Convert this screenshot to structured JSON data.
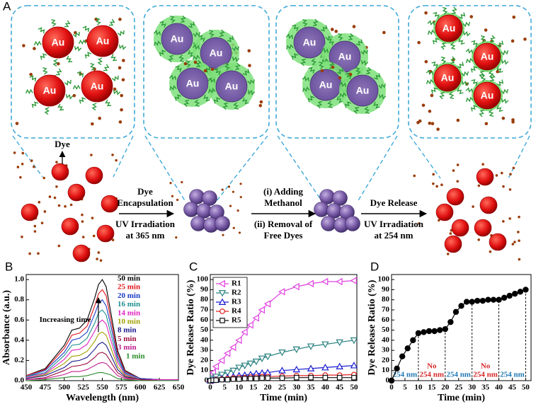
{
  "panel_labels": [
    "A",
    "B",
    "C",
    "D"
  ],
  "diagram": {
    "particle_label": "Au",
    "dye_label": "Dye",
    "steps": [
      {
        "above": [
          "Dye",
          "Encapsulation"
        ],
        "below": [
          "UV Irradiation",
          "at 365 nm"
        ]
      },
      {
        "above": [
          "(i) Adding",
          "Methanol"
        ],
        "below": [
          "(ii) Removal of",
          "Free Dyes"
        ]
      },
      {
        "above": [
          "Dye Release"
        ],
        "below": [
          "UV Irradiation",
          "at 254 nm"
        ]
      }
    ]
  },
  "chart_data": [
    {
      "type": "line",
      "xlabel": "Wavelength (nm)",
      "ylabel": "Absorbance (a.u.)",
      "annotation": "Increasing time",
      "x": [
        450,
        475,
        500,
        510,
        520,
        530,
        540,
        545,
        550,
        555,
        560,
        570,
        580,
        600,
        625,
        650
      ],
      "xlim": [
        450,
        650
      ],
      "xticks": [
        450,
        475,
        500,
        525,
        550,
        575,
        600,
        625,
        650
      ],
      "ylim": [
        0,
        1.05
      ],
      "yticks": [
        {
          "value": 0,
          "label": "0.0"
        },
        0.2,
        0.4,
        0.6,
        0.8,
        {
          "value": 1,
          "label": "1.0"
        }
      ],
      "series": [
        {
          "name": "50 min",
          "color": "#000000",
          "values": [
            0.05,
            0.12,
            0.35,
            0.5,
            0.52,
            0.6,
            0.82,
            0.95,
            1.0,
            0.93,
            0.72,
            0.3,
            0.1,
            0.02,
            0.01,
            0.01
          ]
        },
        {
          "name": "25 min",
          "color": "#e0151b",
          "values": [
            0.05,
            0.11,
            0.32,
            0.45,
            0.47,
            0.54,
            0.74,
            0.86,
            0.9,
            0.84,
            0.65,
            0.27,
            0.09,
            0.02,
            0.01,
            0.01
          ]
        },
        {
          "name": "20 min",
          "color": "#1a3cc8",
          "values": [
            0.04,
            0.1,
            0.28,
            0.4,
            0.42,
            0.48,
            0.66,
            0.76,
            0.8,
            0.74,
            0.58,
            0.24,
            0.08,
            0.02,
            0.01,
            0.01
          ]
        },
        {
          "name": "16 min",
          "color": "#1f8f8f",
          "values": [
            0.04,
            0.08,
            0.25,
            0.35,
            0.36,
            0.42,
            0.57,
            0.67,
            0.7,
            0.65,
            0.5,
            0.21,
            0.07,
            0.01,
            0.01,
            0.01
          ]
        },
        {
          "name": "14 min",
          "color": "#e020c0",
          "values": [
            0.03,
            0.07,
            0.21,
            0.3,
            0.31,
            0.36,
            0.49,
            0.57,
            0.6,
            0.56,
            0.43,
            0.18,
            0.06,
            0.01,
            0.01,
            0.01
          ]
        },
        {
          "name": "10 min",
          "color": "#a0a000",
          "values": [
            0.02,
            0.06,
            0.17,
            0.24,
            0.25,
            0.29,
            0.39,
            0.46,
            0.48,
            0.45,
            0.35,
            0.14,
            0.05,
            0.01,
            0,
            0
          ]
        },
        {
          "name": "8 min",
          "color": "#1a1a8c",
          "values": [
            0.02,
            0.05,
            0.13,
            0.19,
            0.2,
            0.23,
            0.31,
            0.36,
            0.38,
            0.35,
            0.27,
            0.11,
            0.04,
            0.01,
            0,
            0
          ]
        },
        {
          "name": "5 min",
          "color": "#a01040",
          "values": [
            0.01,
            0.03,
            0.1,
            0.14,
            0.15,
            0.17,
            0.23,
            0.27,
            0.28,
            0.26,
            0.2,
            0.08,
            0.03,
            0.01,
            0,
            0
          ]
        },
        {
          "name": "3 min",
          "color": "#c0208f",
          "values": [
            0.01,
            0.02,
            0.06,
            0.09,
            0.09,
            0.11,
            0.15,
            0.17,
            0.18,
            0.17,
            0.13,
            0.05,
            0.02,
            0,
            0,
            0
          ]
        },
        {
          "name": "1 min",
          "color": "#2a8a2a",
          "values": [
            0,
            0.01,
            0.03,
            0.04,
            0.04,
            0.05,
            0.07,
            0.08,
            0.08,
            0.07,
            0.06,
            0.02,
            0.01,
            0,
            0,
            0
          ]
        }
      ]
    },
    {
      "type": "line",
      "xlabel": "Time (min)",
      "ylabel": "Dye Release Ratio (%)",
      "x": [
        0,
        1,
        2,
        4,
        6,
        8,
        10,
        12,
        14,
        16,
        18,
        20,
        25,
        30,
        35,
        40,
        45,
        50
      ],
      "xlim": [
        0,
        51
      ],
      "xticks": [
        0,
        5,
        10,
        15,
        20,
        25,
        30,
        35,
        40,
        45,
        50
      ],
      "ylim": [
        0,
        105
      ],
      "yticks": [
        0,
        10,
        20,
        30,
        40,
        50,
        60,
        70,
        80,
        90,
        100
      ],
      "legend": "upper left",
      "series": [
        {
          "name": "R1",
          "color": "#e040e0",
          "marker": "triangle-left",
          "values": [
            0,
            8,
            14,
            20,
            27,
            33,
            40,
            48,
            55,
            62,
            70,
            76,
            88,
            93,
            96,
            98,
            98,
            99
          ]
        },
        {
          "name": "R2",
          "color": "#2a8080",
          "marker": "triangle-down",
          "values": [
            0,
            2,
            4,
            6,
            8,
            10,
            13,
            15,
            17,
            19,
            22,
            24,
            28,
            31,
            34,
            36,
            38,
            40
          ]
        },
        {
          "name": "R3",
          "color": "#1a1ad0",
          "marker": "triangle-up",
          "values": [
            0,
            0.5,
            1,
            2,
            3,
            4,
            5,
            5.5,
            6,
            7,
            7.5,
            8,
            10,
            11,
            12,
            13,
            14,
            15
          ]
        },
        {
          "name": "R4",
          "color": "#e02020",
          "marker": "circle",
          "values": [
            0,
            0.5,
            1,
            1.5,
            2,
            2.5,
            3,
            3,
            3.5,
            3.5,
            4,
            4,
            4.5,
            5,
            5,
            5.5,
            5.5,
            6
          ]
        },
        {
          "name": "R5",
          "color": "#111111",
          "marker": "square",
          "values": [
            0,
            0.5,
            0.5,
            1,
            1,
            1.5,
            1.5,
            2,
            2,
            2,
            2.5,
            2.5,
            2.5,
            3,
            3,
            3,
            3,
            3
          ]
        }
      ]
    },
    {
      "type": "line",
      "xlabel": "Time (min)",
      "ylabel": "Dye Release Ratio (%)",
      "x": [
        0,
        2,
        4,
        6,
        8,
        10,
        12,
        14,
        16,
        18,
        20,
        22,
        24,
        26,
        28,
        30,
        32,
        34,
        36,
        38,
        40,
        42,
        44,
        46,
        48,
        50
      ],
      "xlim": [
        0,
        52
      ],
      "xticks": [
        0,
        5,
        10,
        15,
        20,
        25,
        30,
        35,
        40,
        45,
        50
      ],
      "ylim": [
        0,
        105
      ],
      "yticks": [
        0,
        10,
        20,
        30,
        40,
        50,
        60,
        70,
        80,
        90,
        100
      ],
      "dividers": [
        10,
        20,
        30,
        40,
        50
      ],
      "annotations": [
        {
          "lines": [
            "254 nm"
          ],
          "color": "#1f77b4"
        },
        {
          "lines": [
            "No",
            "254 nm"
          ],
          "color": "#d62728"
        },
        {
          "lines": [
            "254 nm"
          ],
          "color": "#1f77b4"
        },
        {
          "lines": [
            "No",
            "254 nm"
          ],
          "color": "#d62728"
        },
        {
          "lines": [
            "254 nm"
          ],
          "color": "#1f77b4"
        }
      ],
      "series": [
        {
          "color": "#000000",
          "marker": "filled-circle",
          "values": [
            0,
            12,
            24,
            32,
            40,
            47,
            48,
            49,
            49,
            50,
            51,
            58,
            68,
            74,
            78,
            78,
            79,
            79,
            80,
            80,
            80,
            82,
            84,
            86,
            88,
            90
          ]
        }
      ]
    }
  ]
}
